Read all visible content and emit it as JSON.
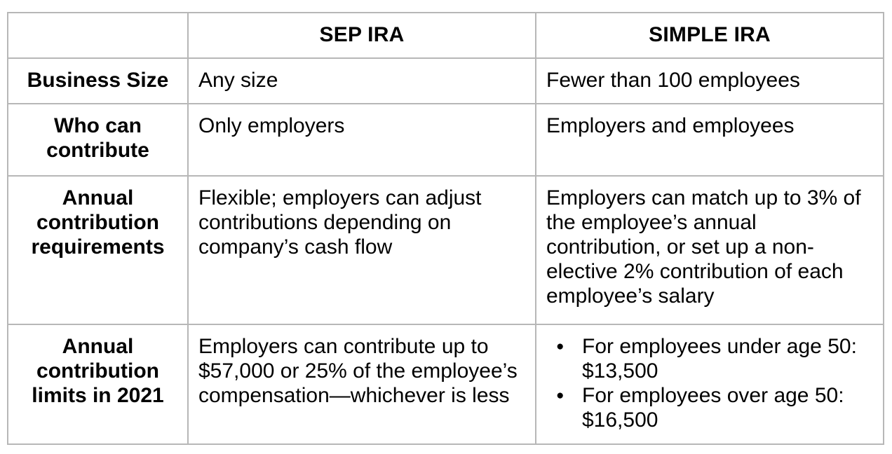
{
  "colors": {
    "border": "#b7b7b7",
    "text": "#000000",
    "background": "#ffffff"
  },
  "icons": {
    "bullet": "●"
  },
  "table": {
    "header": {
      "row_label": "",
      "sep": "SEP IRA",
      "simple": "SIMPLE IRA"
    },
    "rows": [
      {
        "label": "Business Size",
        "sep": "Any size",
        "simple": "Fewer than 100 employees"
      },
      {
        "label": "Who can contribute",
        "sep": "Only employers",
        "simple": "Employers and employees"
      },
      {
        "label": "Annual contribution requirements",
        "sep": "Flexible; employers can adjust contributions depending on company’s cash flow",
        "simple": "Employers can match up to 3% of the employee’s annual contribution, or set up a non-elective 2% contribution of each employee’s salary"
      },
      {
        "label": "Annual contribution limits in 2021",
        "sep": "Employers can contribute up to $57,000 or 25% of the employee’s compensation—whichever is less",
        "simple_bullets": [
          "For employees under age 50: $13,500",
          "For employees over age 50: $16,500"
        ]
      }
    ]
  }
}
